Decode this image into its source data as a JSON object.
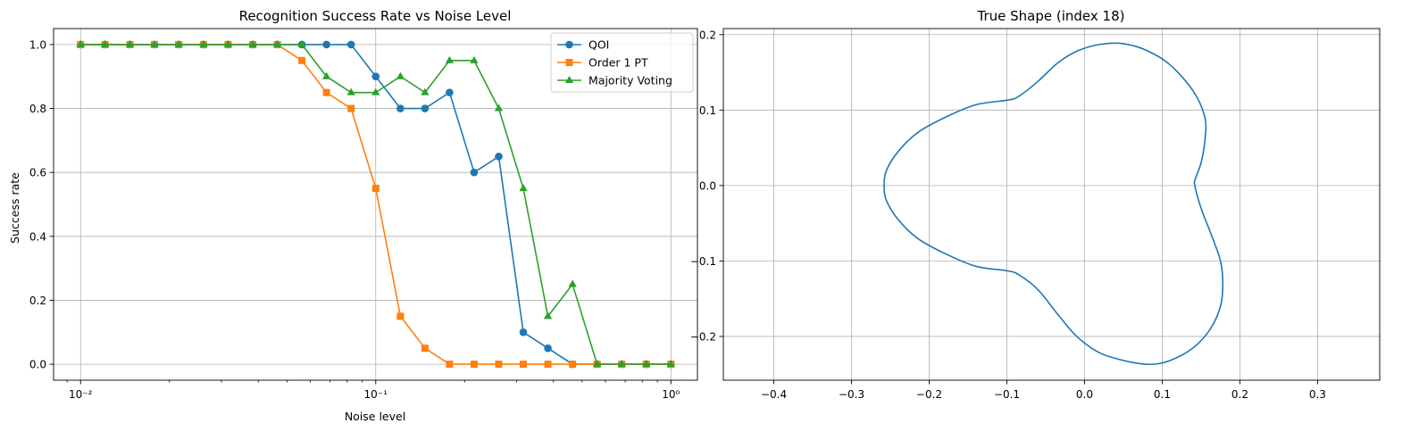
{
  "figure": {
    "left": {
      "title": "Recognition Success Rate vs Noise Level",
      "xlabel": "Noise level",
      "ylabel": "Success rate"
    },
    "right": {
      "title": "True Shape (index 18)"
    }
  },
  "chart_data": [
    {
      "type": "line",
      "title": "Recognition Success Rate vs Noise Level",
      "xlabel": "Noise level",
      "ylabel": "Success rate",
      "xscale": "log",
      "xlim": [
        0.0081,
        1.23
      ],
      "ylim": [
        -0.05,
        1.05
      ],
      "xticks": [
        0.01,
        0.1,
        1
      ],
      "xtick_labels": [
        "10⁻²",
        "10⁻¹",
        "10⁰"
      ],
      "yticks": [
        0.0,
        0.2,
        0.4,
        0.6,
        0.8,
        1.0
      ],
      "ytick_labels": [
        "0.0",
        "0.2",
        "0.4",
        "0.6",
        "0.8",
        "1.0"
      ],
      "grid": true,
      "legend_position": "top-right",
      "x": [
        0.01,
        0.0121,
        0.0147,
        0.0178,
        0.0215,
        0.0261,
        0.0316,
        0.0383,
        0.0464,
        0.0562,
        0.0681,
        0.0825,
        0.1,
        0.1212,
        0.1468,
        0.1778,
        0.2154,
        0.261,
        0.3162,
        0.3831,
        0.4642,
        0.5623,
        0.6813,
        0.8254,
        1.0
      ],
      "series": [
        {
          "name": "QOI",
          "color": "#1f77b4",
          "marker": "circle",
          "values": [
            1,
            1,
            1,
            1,
            1,
            1,
            1,
            1,
            1,
            1,
            1,
            1,
            0.9,
            0.8,
            0.8,
            0.85,
            0.6,
            0.65,
            0.1,
            0.05,
            0,
            0,
            0,
            0,
            0
          ]
        },
        {
          "name": "Order 1 PT",
          "color": "#ff7f0e",
          "marker": "square",
          "values": [
            1,
            1,
            1,
            1,
            1,
            1,
            1,
            1,
            1,
            0.95,
            0.85,
            0.8,
            0.55,
            0.15,
            0.05,
            0,
            0,
            0,
            0,
            0,
            0,
            0,
            0,
            0,
            0
          ]
        },
        {
          "name": "Majority Voting",
          "color": "#2ca02c",
          "marker": "triangle",
          "values": [
            1,
            1,
            1,
            1,
            1,
            1,
            1,
            1,
            1,
            1,
            0.9,
            0.85,
            0.85,
            0.9,
            0.85,
            0.95,
            0.95,
            0.8,
            0.55,
            0.15,
            0.25,
            0,
            0,
            0,
            0
          ]
        }
      ]
    },
    {
      "type": "line",
      "title": "True Shape (index 18)",
      "xlim": [
        -0.465,
        0.38
      ],
      "ylim": [
        -0.258,
        0.208
      ],
      "xticks": [
        -0.4,
        -0.3,
        -0.2,
        -0.1,
        0.0,
        0.1,
        0.2,
        0.3
      ],
      "xtick_labels": [
        "−0.4",
        "−0.3",
        "−0.2",
        "−0.1",
        "0.0",
        "0.1",
        "0.2",
        "0.3"
      ],
      "yticks": [
        -0.2,
        -0.1,
        0.0,
        0.1,
        0.2
      ],
      "ytick_labels": [
        "−0.2",
        "−0.1",
        "0.0",
        "0.1",
        "0.2"
      ],
      "grid": true,
      "series": [
        {
          "color": "#1f77b4",
          "x": [
            0.142,
            0.15,
            0.165,
            0.175,
            0.178,
            0.175,
            0.162,
            0.14,
            0.11,
            0.085,
            0.055,
            0.02,
            -0.01,
            -0.035,
            -0.06,
            -0.085,
            -0.1,
            -0.14,
            -0.18,
            -0.215,
            -0.24,
            -0.255,
            -0.258,
            -0.255,
            -0.24,
            -0.215,
            -0.18,
            -0.14,
            -0.1,
            -0.085,
            -0.06,
            -0.035,
            -0.01,
            0.02,
            0.05,
            0.08,
            0.11,
            0.14,
            0.155,
            0.155,
            0.15,
            0.143,
            0.142
          ],
          "y": [
            0.0,
            -0.03,
            -0.07,
            -0.1,
            -0.13,
            -0.16,
            -0.19,
            -0.215,
            -0.232,
            -0.237,
            -0.233,
            -0.222,
            -0.2,
            -0.17,
            -0.138,
            -0.118,
            -0.113,
            -0.107,
            -0.09,
            -0.07,
            -0.045,
            -0.02,
            0.0,
            0.02,
            0.045,
            0.07,
            0.09,
            0.107,
            0.113,
            0.118,
            0.138,
            0.162,
            0.178,
            0.187,
            0.188,
            0.179,
            0.16,
            0.125,
            0.09,
            0.06,
            0.03,
            0.01,
            0.0
          ]
        }
      ]
    }
  ]
}
